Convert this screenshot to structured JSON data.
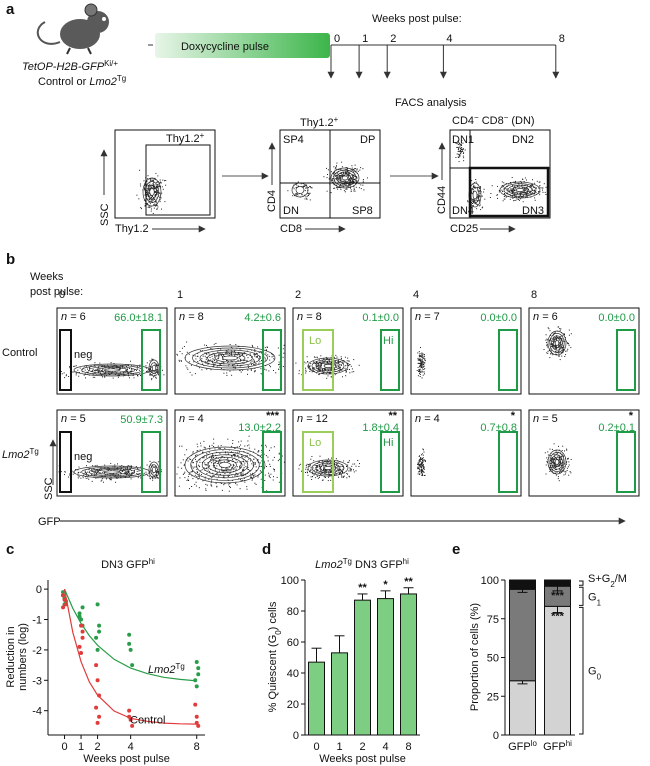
{
  "panel_a": {
    "letter": "a",
    "weeks_title": "Weeks post pulse:",
    "weeks": [
      0,
      1,
      2,
      4,
      8
    ],
    "pulse": "Doxycycline pulse",
    "mouse_line": "TetOP-H2B-GFP",
    "mouse_line_sup": "Ki/+",
    "cohort": "Control or ",
    "cohort_gene": "Lmo2",
    "cohort_sup": "Tg",
    "facs_title": "FACS analysis",
    "plots": [
      {
        "gate": "Thy1.2",
        "gate_sup": "+",
        "y_label": "SSC",
        "x_label": "Thy1.2"
      },
      {
        "title": "Thy1.2",
        "title_sup": "+",
        "quadrants": [
          "SP4",
          "DP",
          "DN",
          "SP8"
        ],
        "y_label": "CD4",
        "x_label": "CD8"
      },
      {
        "title": "CD4",
        "title_sup": "−",
        "title2": " CD8",
        "title2_sup": "−",
        "title3": " (DN)",
        "quadrants": [
          "DN1",
          "DN2",
          "DN4",
          "DN3"
        ],
        "y_label": "CD44",
        "x_label": "CD25"
      }
    ]
  },
  "panel_b": {
    "letter": "b",
    "weeks_title": [
      "Weeks",
      "post pulse:"
    ],
    "weeks": [
      0,
      1,
      2,
      4,
      8
    ],
    "n_prefix": "n = ",
    "gates": {
      "neg": "neg",
      "lo": "Lo",
      "hi": "Hi"
    },
    "y_label": "SSC",
    "x_label": "GFP",
    "rows": [
      {
        "label": "Control",
        "plots": [
          {
            "n": 6,
            "pct": "66.0±18.1"
          },
          {
            "n": 8,
            "pct": "4.2±0.6"
          },
          {
            "n": 8,
            "pct": "0.1±0.0"
          },
          {
            "n": 7,
            "pct": "0.0±0.0"
          },
          {
            "n": 6,
            "pct": "0.0±0.0"
          }
        ]
      },
      {
        "label": "Lmo2",
        "label_sup": "Tg",
        "plots": [
          {
            "n": 5,
            "pct": "50.9±7.3"
          },
          {
            "n": 4,
            "pct": "13.0±2.2",
            "stars": "***"
          },
          {
            "n": 12,
            "pct": "1.8±0.4",
            "stars": "**"
          },
          {
            "n": 4,
            "pct": "0.7±0.8",
            "stars": "*"
          },
          {
            "n": 5,
            "pct": "0.2±0.1",
            "stars": "*"
          }
        ]
      }
    ]
  },
  "chart_data": [
    {
      "type": "scatter",
      "letter": "c",
      "title": "DN3 GFP",
      "title_sup": "hi",
      "x_label": "Weeks post pulse",
      "y_label": [
        "Reduction in",
        "numbers (log)"
      ],
      "xlim": [
        -1,
        8.5
      ],
      "xticks": [
        0,
        1,
        2,
        4,
        8
      ],
      "ylim": [
        -4.8,
        0.3
      ],
      "yticks": [
        0,
        -1,
        -2,
        -3,
        -4
      ],
      "series": [
        {
          "name": "Lmo2",
          "name_sup": "Tg",
          "color": "#2a9d4a",
          "x": [
            0,
            0,
            0,
            0,
            0,
            1,
            1,
            1,
            1,
            1,
            2,
            2,
            2,
            2,
            2,
            4,
            4,
            4,
            4,
            8,
            8,
            8,
            8,
            8
          ],
          "values": [
            -0.2,
            -0.3,
            -0.4,
            -0.1,
            -0.5,
            -0.6,
            -0.8,
            -1.0,
            -1.2,
            -0.9,
            -0.5,
            -1.2,
            -1.6,
            -2.0,
            -1.4,
            -1.5,
            -2.0,
            -2.5,
            -1.8,
            -2.4,
            -2.8,
            -3.0,
            -3.2,
            -2.6
          ],
          "fit": {
            "x": [
              0,
              0.5,
              1,
              1.5,
              2,
              3,
              4,
              5,
              6,
              7,
              8
            ],
            "values": [
              0,
              -0.63,
              -1.13,
              -1.53,
              -1.85,
              -2.31,
              -2.6,
              -2.78,
              -2.9,
              -2.97,
              -3.02
            ]
          }
        },
        {
          "name": "Control",
          "color": "#e23b3b",
          "x": [
            0,
            0,
            0,
            0,
            1,
            1,
            1,
            1,
            1,
            2,
            2,
            2,
            2,
            2,
            2,
            4,
            4,
            4,
            4,
            8,
            8,
            8,
            8
          ],
          "values": [
            -0.2,
            -0.35,
            -0.5,
            -0.6,
            -1.2,
            -1.6,
            -1.9,
            -2.1,
            -1.4,
            -2.5,
            -3.0,
            -3.5,
            -3.9,
            -4.4,
            -4.2,
            -4.0,
            -4.3,
            -4.5,
            -4.2,
            -4.2,
            -4.5,
            -3.8,
            -4.4
          ],
          "fit": {
            "x": [
              0,
              0.5,
              1,
              1.5,
              2,
              3,
              4,
              5,
              6,
              7,
              8
            ],
            "values": [
              0,
              -1.42,
              -2.39,
              -3.05,
              -3.49,
              -4.01,
              -4.25,
              -4.35,
              -4.41,
              -4.43,
              -4.44
            ]
          }
        }
      ]
    },
    {
      "type": "bar",
      "letter": "d",
      "title": "Lmo2",
      "title_sup": "Tg",
      "title2": " DN3 GFP",
      "title2_sup": "hi",
      "categories": [
        "0",
        "1",
        "2",
        "4",
        "8"
      ],
      "values": [
        47,
        53,
        87,
        88,
        91
      ],
      "errors": [
        9,
        11,
        4,
        5,
        4
      ],
      "annotations": [
        null,
        null,
        "**",
        "*",
        "**"
      ],
      "color": "#7dce82",
      "ylim": [
        0,
        100
      ],
      "yticks": [
        0,
        20,
        40,
        60,
        80,
        100
      ],
      "y_label": "% Quiescent (G",
      "y_label_sub": "0",
      "y_label2": ") cells",
      "x_label": "Weeks post pulse"
    },
    {
      "type": "stacked_bar",
      "letter": "e",
      "categories": [
        "GFP",
        "GFP"
      ],
      "category_sups": [
        "lo",
        "hi"
      ],
      "ylim": [
        0,
        100
      ],
      "yticks": [
        0,
        25,
        50,
        75,
        100
      ],
      "y_label": "Proportion of cells (%)",
      "series": [
        {
          "name": "G",
          "name_sub": "0",
          "color": "#d3d3d3",
          "values": [
            35,
            83
          ],
          "errors": [
            2,
            4
          ],
          "annotations": [
            null,
            "***"
          ]
        },
        {
          "name": "G",
          "name_sub": "1",
          "color": "#7a7a7a",
          "values": [
            59,
            13
          ],
          "errors": [
            2,
            3
          ],
          "annotations": [
            null,
            "***"
          ]
        },
        {
          "name": "S+G",
          "name_sub": "2",
          "name_rest": "/M",
          "color": "#111111",
          "values": [
            6,
            4
          ]
        }
      ]
    }
  ]
}
